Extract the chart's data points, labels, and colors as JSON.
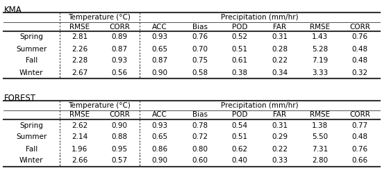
{
  "title_kma": "KMA",
  "title_forest": "FOREST",
  "seasons": [
    "Spring",
    "Summer",
    "Fall",
    "Winter"
  ],
  "col_labels": [
    "RMSE",
    "CORR",
    "ACC",
    "Bias",
    "POD",
    "FAR",
    "RMSE",
    "CORR"
  ],
  "kma_data": [
    [
      "2.81",
      "0.89",
      "0.93",
      "0.76",
      "0.52",
      "0.31",
      "1.43",
      "0.76"
    ],
    [
      "2.26",
      "0.87",
      "0.65",
      "0.70",
      "0.51",
      "0.28",
      "5.28",
      "0.48"
    ],
    [
      "2.28",
      "0.93",
      "0.87",
      "0.75",
      "0.61",
      "0.22",
      "7.19",
      "0.48"
    ],
    [
      "2.67",
      "0.56",
      "0.90",
      "0.58",
      "0.38",
      "0.34",
      "3.33",
      "0.32"
    ]
  ],
  "forest_data": [
    [
      "2.62",
      "0.90",
      "0.93",
      "0.78",
      "0.54",
      "0.31",
      "1.38",
      "0.77"
    ],
    [
      "2.14",
      "0.88",
      "0.65",
      "0.72",
      "0.51",
      "0.29",
      "5.50",
      "0.48"
    ],
    [
      "1.96",
      "0.95",
      "0.86",
      "0.80",
      "0.62",
      "0.22",
      "7.31",
      "0.76"
    ],
    [
      "2.66",
      "0.57",
      "0.90",
      "0.60",
      "0.40",
      "0.33",
      "2.80",
      "0.66"
    ]
  ],
  "bg_color": "#ffffff",
  "text_color": "#000000",
  "line_color": "#333333",
  "font_size": 7.5,
  "title_font_size": 8.5,
  "col_widths_rel": [
    1.4,
    1.0,
    1.0,
    1.0,
    1.0,
    1.0,
    1.0,
    1.0,
    1.0
  ]
}
